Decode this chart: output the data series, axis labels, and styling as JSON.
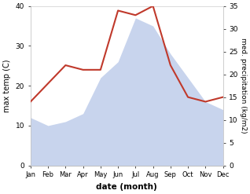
{
  "months": [
    "Jan",
    "Feb",
    "Mar",
    "Apr",
    "May",
    "Jun",
    "Jul",
    "Aug",
    "Sep",
    "Oct",
    "Nov",
    "Dec"
  ],
  "max_temp": [
    12,
    10,
    11,
    13,
    22,
    26,
    37,
    35,
    28,
    22,
    16,
    14
  ],
  "precipitation": [
    14,
    18,
    22,
    21,
    21,
    34,
    33,
    35,
    22,
    15,
    14,
    15
  ],
  "precip_color": "#c0392b",
  "temp_fill_color": "#c8d4ed",
  "temp_ylim": [
    0,
    40
  ],
  "precip_ylim": [
    0,
    35
  ],
  "temp_yticks": [
    0,
    10,
    20,
    30,
    40
  ],
  "precip_yticks": [
    0,
    5,
    10,
    15,
    20,
    25,
    30,
    35
  ],
  "xlabel": "date (month)",
  "ylabel_left": "max temp (C)",
  "ylabel_right": "med. precipitation (kg/m2)",
  "bg_color": "#ffffff",
  "fig_width": 3.18,
  "fig_height": 2.47,
  "dpi": 100
}
